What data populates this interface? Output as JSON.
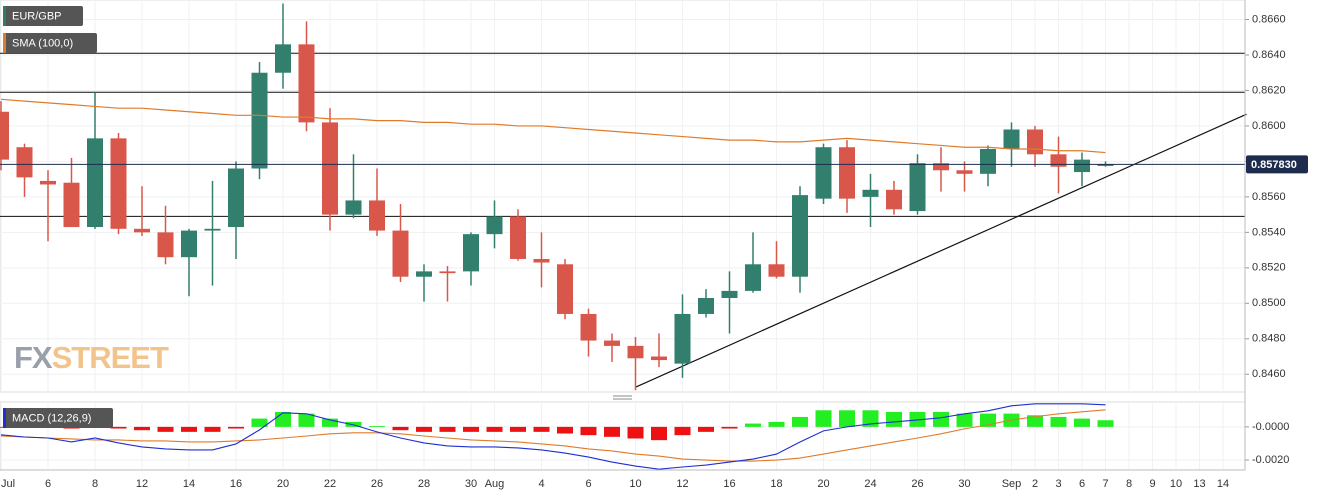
{
  "chart_data": [
    {
      "type": "candlestick",
      "categories": [
        "Jul",
        null,
        "6",
        null,
        "8",
        null,
        "12",
        null,
        "14",
        null,
        "16",
        null,
        "20",
        null,
        "22",
        null,
        "26",
        null,
        "28",
        null,
        "30",
        "Aug",
        null,
        "4",
        null,
        "6",
        null,
        "10",
        null,
        "12",
        null,
        "16",
        null,
        "18",
        null,
        "20",
        null,
        "24",
        null,
        "26",
        null,
        "30",
        null,
        "Sep",
        "2",
        "3",
        "6",
        "7",
        "8",
        "9",
        "10",
        "13",
        "14"
      ],
      "series": [
        {
          "name": "EUR/GBP",
          "color": "#2e7d6b",
          "up_color": "#327f6e",
          "down_color": "#d9574a",
          "open": [
            0.8608,
            0.8588,
            0.8569,
            0.8568,
            0.8543,
            0.8593,
            0.8542,
            0.854,
            0.8526,
            0.8541,
            0.8543,
            0.8576,
            0.863,
            0.8646,
            0.8602,
            0.855,
            0.8558,
            0.8541,
            0.8515,
            0.8518,
            0.8518,
            0.8539,
            0.8549,
            0.8525,
            0.8522,
            0.8494,
            0.8479,
            0.8476,
            0.847,
            0.8466,
            0.8494,
            0.8503,
            0.8507,
            0.8522,
            0.8515,
            0.8559,
            0.8588,
            0.856,
            0.8564,
            0.8552,
            0.8579,
            0.8575,
            0.8573,
            0.8587,
            0.8598,
            0.8584,
            0.8574,
            0.8578,
            null,
            null,
            null,
            null,
            null
          ],
          "high": [
            0.8614,
            0.859,
            0.8575,
            0.8582,
            0.8619,
            0.8596,
            0.8566,
            0.8555,
            0.8542,
            0.8569,
            0.858,
            0.8636,
            0.8669,
            0.8659,
            0.861,
            0.8584,
            0.8576,
            0.8556,
            0.8522,
            0.8521,
            0.854,
            0.8558,
            0.8553,
            0.854,
            0.8525,
            0.8497,
            0.8483,
            0.8481,
            0.8483,
            0.8505,
            0.8508,
            0.8518,
            0.854,
            0.8535,
            0.8566,
            0.859,
            0.8592,
            0.8573,
            0.8569,
            0.8584,
            0.8588,
            0.858,
            0.8589,
            0.8602,
            0.86,
            0.8594,
            0.8585,
            0.858,
            null,
            null,
            null,
            null,
            null
          ],
          "low": [
            0.8575,
            0.856,
            0.8535,
            0.8543,
            0.8542,
            0.8539,
            0.8538,
            0.8522,
            0.8504,
            0.851,
            0.8525,
            0.857,
            0.8621,
            0.8597,
            0.8541,
            0.8548,
            0.8538,
            0.8512,
            0.8501,
            0.8501,
            0.851,
            0.8531,
            0.8524,
            0.8509,
            0.8491,
            0.847,
            0.8467,
            0.8451,
            0.8464,
            0.8458,
            0.8492,
            0.8483,
            0.8506,
            0.8514,
            0.8506,
            0.8556,
            0.8551,
            0.8543,
            0.855,
            0.855,
            0.8563,
            0.8563,
            0.8566,
            0.8577,
            0.8577,
            0.8562,
            0.8566,
            0.8577,
            null,
            null,
            null,
            null,
            null
          ],
          "close": [
            0.8581,
            0.8571,
            0.8567,
            0.8543,
            0.8593,
            0.8542,
            0.854,
            0.8526,
            0.8541,
            0.8542,
            0.8576,
            0.863,
            0.8646,
            0.8602,
            0.855,
            0.8558,
            0.8541,
            0.8515,
            0.8518,
            0.8517,
            0.8539,
            0.8549,
            0.8525,
            0.8523,
            0.8494,
            0.8479,
            0.8476,
            0.8469,
            0.8468,
            0.8494,
            0.8503,
            0.8507,
            0.8522,
            0.8515,
            0.8561,
            0.8588,
            0.8559,
            0.8564,
            0.8553,
            0.8579,
            0.8575,
            0.8573,
            0.8587,
            0.8598,
            0.8584,
            0.8577,
            0.8581,
            0.85783,
            null,
            null,
            null,
            null,
            null
          ]
        }
      ],
      "overlays": [
        {
          "name": "SMA (100,0)",
          "color": "#e07b2a",
          "values": [
            0.8615,
            0.8614,
            0.8613,
            0.8612,
            0.8611,
            0.861,
            0.861,
            0.8609,
            0.8608,
            0.8607,
            0.8606,
            0.8606,
            0.8605,
            0.8605,
            0.8604,
            0.8604,
            0.8603,
            0.8603,
            0.8602,
            0.8602,
            0.8601,
            0.8601,
            0.86,
            0.86,
            0.8599,
            0.8598,
            0.8597,
            0.8596,
            0.8595,
            0.8594,
            0.8593,
            0.8592,
            0.8592,
            0.8591,
            0.8591,
            0.8592,
            0.8593,
            0.8592,
            0.8591,
            0.859,
            0.8589,
            0.8588,
            0.8588,
            0.8587,
            0.8587,
            0.8586,
            0.8586,
            0.8585,
            null,
            null,
            null,
            null,
            null
          ]
        }
      ],
      "hlines": [
        0.8641,
        0.8619,
        0.8549
      ],
      "trendline": {
        "x": [
          27,
          53
        ],
        "y": [
          0.84527,
          0.86066
        ]
      },
      "last_price": {
        "value": 0.85783,
        "label": "0.857830",
        "color": "#1d2c4c"
      },
      "ylim": [
        0.845,
        0.8671
      ],
      "yticks": [
        {
          "value": 0.846,
          "label": "0.8460"
        },
        {
          "value": 0.848,
          "label": "0.8480"
        },
        {
          "value": 0.85,
          "label": "0.8500"
        },
        {
          "value": 0.852,
          "label": "0.8520"
        },
        {
          "value": 0.854,
          "label": "0.8540"
        },
        {
          "value": 0.856,
          "label": "0.8560"
        },
        {
          "value": 0.858,
          "label": "0.8580"
        },
        {
          "value": 0.86,
          "label": "0.8600"
        },
        {
          "value": 0.862,
          "label": "0.8620"
        },
        {
          "value": 0.864,
          "label": "0.8640"
        },
        {
          "value": 0.866,
          "label": "0.8660"
        }
      ],
      "grid": true,
      "watermark": [
        "FX",
        "STREET"
      ]
    },
    {
      "type": "macd",
      "title": "MACD (12,26,9)",
      "color": "#1f2fd0",
      "histogram": {
        "up_color": "#22ee22",
        "down_color": "#ee1111",
        "values": [
          -5e-05,
          -5e-05,
          -5e-05,
          -0.0001,
          -5e-05,
          -0.0001,
          -0.0002,
          -0.0003,
          -0.0003,
          -0.0003,
          -0.0001,
          0.0005,
          0.0009,
          0.0008,
          0.0005,
          0.0003,
          5e-05,
          -0.0002,
          -0.0003,
          -0.0003,
          -0.0003,
          -0.0003,
          -0.0003,
          -0.0003,
          -0.0004,
          -0.0005,
          -0.0006,
          -0.0007,
          -0.0008,
          -0.0005,
          -0.0003,
          -0.0001,
          0.0002,
          0.0003,
          0.0006,
          0.001,
          0.001,
          0.001,
          0.0009,
          0.0009,
          0.0009,
          0.0008,
          0.0008,
          0.0008,
          0.0007,
          0.0006,
          0.0005,
          0.0004,
          null,
          null,
          null,
          null,
          null
        ]
      },
      "macd": {
        "color": "#1f2fd0",
        "values": [
          -0.00048,
          -0.00061,
          -0.00067,
          -0.00091,
          -0.00067,
          -0.00097,
          -0.00121,
          -0.00133,
          -0.00139,
          -0.00139,
          -0.00103,
          -0.00018,
          0.00085,
          0.00079,
          0.00042,
          0.00012,
          -0.0003,
          -0.00067,
          -0.00097,
          -0.00115,
          -0.00121,
          -0.00121,
          -0.00127,
          -0.00139,
          -0.00158,
          -0.00182,
          -0.00212,
          -0.00236,
          -0.00255,
          -0.00242,
          -0.0023,
          -0.00212,
          -0.00194,
          -0.00164,
          -0.00091,
          -0.00024,
          0,
          0.00018,
          0.0003,
          0.00042,
          0.00055,
          0.00079,
          0.00097,
          0.00127,
          0.00139,
          0.00139,
          0.00139,
          0.00133,
          null,
          null,
          null,
          null,
          null
        ]
      },
      "signal": {
        "color": "#e07b2a",
        "values": [
          -0.00055,
          -0.00061,
          -0.00067,
          -0.00073,
          -0.00079,
          -0.00079,
          -0.00085,
          -0.00085,
          -0.00091,
          -0.00091,
          -0.00085,
          -0.00079,
          -0.00067,
          -0.00055,
          -0.00042,
          -0.00036,
          -0.00036,
          -0.00042,
          -0.00055,
          -0.00067,
          -0.00079,
          -0.00085,
          -0.00091,
          -0.00103,
          -0.00115,
          -0.00133,
          -0.00145,
          -0.00164,
          -0.00176,
          -0.00194,
          -0.002,
          -0.00206,
          -0.00206,
          -0.002,
          -0.00188,
          -0.00164,
          -0.00139,
          -0.00115,
          -0.00091,
          -0.00067,
          -0.00042,
          -0.00012,
          0.00012,
          0.00042,
          0.00061,
          0.00079,
          0.00091,
          0.00103,
          null,
          null,
          null,
          null,
          null
        ]
      },
      "ylim": [
        -0.0026,
        0.0015
      ],
      "yticks": [
        {
          "value": 0,
          "label": "-0.0000"
        },
        {
          "value": -0.002,
          "label": "-0.0020"
        }
      ]
    }
  ]
}
